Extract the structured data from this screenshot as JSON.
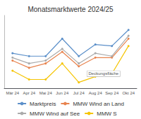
{
  "chart_data": {
    "type": "line",
    "title": "Monatsmarktwerte 2024/25",
    "categories": [
      "Mär 24",
      "Apr 24",
      "Mai 24",
      "Jun 24",
      "Jul 24",
      "Aug 24",
      "Sep 24",
      "Okt 24"
    ],
    "series": [
      {
        "name": "Marktpreis",
        "color": "#5b8fc9",
        "values": [
          62,
          60,
          60,
          72,
          60,
          68,
          67,
          78
        ]
      },
      {
        "name": "MMW Wind an Land",
        "color": "#e8834e",
        "values": [
          57,
          52,
          55,
          63,
          53,
          59,
          59,
          72
        ]
      },
      {
        "name": "MMW Wind auf See",
        "color": "#aaaaaa",
        "values": [
          59,
          55,
          57,
          65,
          55,
          62,
          60,
          74
        ]
      },
      {
        "name": "MMW S",
        "color": "#f5c400",
        "values": [
          50,
          44,
          44,
          55,
          42,
          46,
          48,
          67
        ]
      }
    ],
    "ylim": [
      38,
      88
    ],
    "grid": false,
    "legend": "bottom",
    "marker": "circle",
    "tick_labels": "x",
    "annotations": [
      {
        "text": "Deckungsfläche",
        "x": 4.5,
        "y": 46
      }
    ]
  }
}
